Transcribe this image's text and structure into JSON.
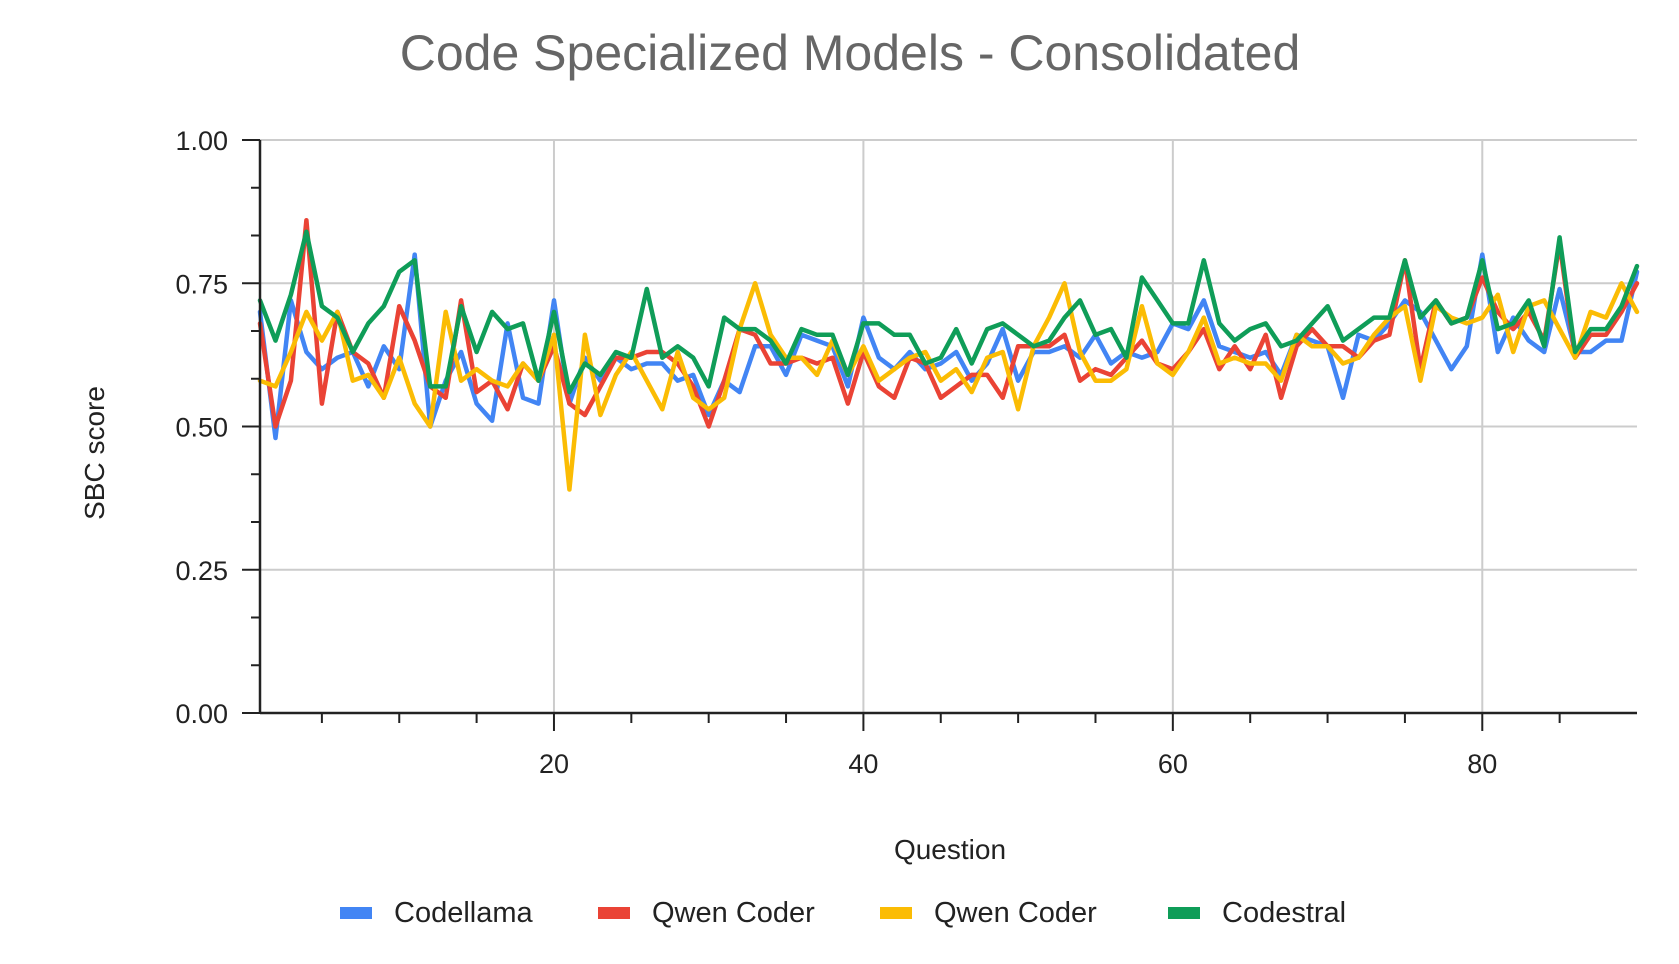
{
  "chart_data": {
    "type": "line",
    "title": "Code Specialized Models - Consolidated",
    "xlabel": "Question",
    "ylabel": "SBC score",
    "xlim": [
      1,
      90
    ],
    "ylim": [
      0,
      1
    ],
    "xticks": [
      20,
      40,
      60,
      80
    ],
    "xtick_labels": [
      "20",
      "40",
      "60",
      "80"
    ],
    "yticks": [
      0,
      0.25,
      0.5,
      0.75,
      1
    ],
    "ytick_labels": [
      "0.00",
      "0.25",
      "0.50",
      "0.75",
      "1.00"
    ],
    "grid": true,
    "legend_position": "bottom",
    "x": [
      1,
      2,
      3,
      4,
      5,
      6,
      7,
      8,
      9,
      10,
      11,
      12,
      13,
      14,
      15,
      16,
      17,
      18,
      19,
      20,
      21,
      22,
      23,
      24,
      25,
      26,
      27,
      28,
      29,
      30,
      31,
      32,
      33,
      34,
      35,
      36,
      37,
      38,
      39,
      40,
      41,
      42,
      43,
      44,
      45,
      46,
      47,
      48,
      49,
      50,
      51,
      52,
      53,
      54,
      55,
      56,
      57,
      58,
      59,
      60,
      61,
      62,
      63,
      64,
      65,
      66,
      67,
      68,
      69,
      70,
      71,
      72,
      73,
      74,
      75,
      76,
      77,
      78,
      79,
      80,
      81,
      82,
      83,
      84,
      85,
      86,
      87,
      88,
      89,
      90
    ],
    "series": [
      {
        "name": "Codellama",
        "color": "#4285f4",
        "values": [
          0.7,
          0.48,
          0.72,
          0.63,
          0.6,
          0.62,
          0.63,
          0.57,
          0.64,
          0.6,
          0.8,
          0.5,
          0.58,
          0.63,
          0.54,
          0.51,
          0.68,
          0.55,
          0.54,
          0.72,
          0.54,
          0.62,
          0.58,
          0.62,
          0.6,
          0.61,
          0.61,
          0.58,
          0.59,
          0.52,
          0.58,
          0.56,
          0.64,
          0.64,
          0.59,
          0.66,
          0.65,
          0.64,
          0.57,
          0.69,
          0.62,
          0.6,
          0.63,
          0.6,
          0.61,
          0.63,
          0.58,
          0.61,
          0.67,
          0.58,
          0.63,
          0.63,
          0.64,
          0.62,
          0.66,
          0.61,
          0.63,
          0.62,
          0.63,
          0.68,
          0.67,
          0.72,
          0.64,
          0.63,
          0.62,
          0.63,
          0.59,
          0.66,
          0.65,
          0.64,
          0.55,
          0.66,
          0.65,
          0.68,
          0.72,
          0.7,
          0.65,
          0.6,
          0.64,
          0.8,
          0.63,
          0.69,
          0.65,
          0.63,
          0.74,
          0.63,
          0.63,
          0.65,
          0.65,
          0.77
        ]
      },
      {
        "name": "Qwen Coder",
        "color": "#ea4335",
        "values": [
          0.68,
          0.5,
          0.58,
          0.86,
          0.54,
          0.7,
          0.63,
          0.61,
          0.55,
          0.71,
          0.65,
          0.57,
          0.55,
          0.72,
          0.56,
          0.58,
          0.53,
          0.61,
          0.58,
          0.64,
          0.54,
          0.52,
          0.57,
          0.62,
          0.62,
          0.63,
          0.63,
          0.61,
          0.57,
          0.5,
          0.58,
          0.67,
          0.66,
          0.61,
          0.61,
          0.62,
          0.61,
          0.62,
          0.54,
          0.63,
          0.57,
          0.55,
          0.62,
          0.61,
          0.55,
          0.57,
          0.59,
          0.59,
          0.55,
          0.64,
          0.64,
          0.64,
          0.66,
          0.58,
          0.6,
          0.59,
          0.62,
          0.65,
          0.61,
          0.6,
          0.63,
          0.67,
          0.6,
          0.64,
          0.6,
          0.66,
          0.55,
          0.64,
          0.67,
          0.64,
          0.64,
          0.62,
          0.65,
          0.66,
          0.79,
          0.6,
          0.72,
          0.68,
          0.69,
          0.76,
          0.7,
          0.67,
          0.7,
          0.65,
          0.82,
          0.62,
          0.66,
          0.66,
          0.7,
          0.75
        ]
      },
      {
        "name": "Qwen Coder",
        "color": "#fbbc04",
        "values": [
          0.58,
          0.57,
          0.63,
          0.7,
          0.65,
          0.7,
          0.58,
          0.59,
          0.55,
          0.62,
          0.54,
          0.5,
          0.7,
          0.58,
          0.6,
          0.58,
          0.57,
          0.61,
          0.58,
          0.66,
          0.39,
          0.66,
          0.52,
          0.59,
          0.63,
          0.58,
          0.53,
          0.63,
          0.55,
          0.53,
          0.55,
          0.67,
          0.75,
          0.66,
          0.62,
          0.62,
          0.59,
          0.65,
          0.59,
          0.64,
          0.58,
          0.6,
          0.62,
          0.63,
          0.58,
          0.6,
          0.56,
          0.62,
          0.63,
          0.53,
          0.64,
          0.69,
          0.75,
          0.63,
          0.58,
          0.58,
          0.6,
          0.71,
          0.61,
          0.59,
          0.63,
          0.69,
          0.61,
          0.62,
          0.61,
          0.61,
          0.58,
          0.66,
          0.64,
          0.64,
          0.61,
          0.62,
          0.66,
          0.69,
          0.71,
          0.58,
          0.71,
          0.69,
          0.68,
          0.69,
          0.73,
          0.63,
          0.71,
          0.72,
          0.67,
          0.62,
          0.7,
          0.69,
          0.75,
          0.7
        ]
      },
      {
        "name": "Codestral",
        "color": "#0f9d58",
        "values": [
          0.72,
          0.65,
          0.73,
          0.84,
          0.71,
          0.69,
          0.63,
          0.68,
          0.71,
          0.77,
          0.79,
          0.57,
          0.57,
          0.71,
          0.63,
          0.7,
          0.67,
          0.68,
          0.58,
          0.7,
          0.56,
          0.61,
          0.59,
          0.63,
          0.62,
          0.74,
          0.62,
          0.64,
          0.62,
          0.57,
          0.69,
          0.67,
          0.67,
          0.65,
          0.61,
          0.67,
          0.66,
          0.66,
          0.59,
          0.68,
          0.68,
          0.66,
          0.66,
          0.61,
          0.62,
          0.67,
          0.61,
          0.67,
          0.68,
          0.66,
          0.64,
          0.65,
          0.69,
          0.72,
          0.66,
          0.67,
          0.62,
          0.76,
          0.72,
          0.68,
          0.68,
          0.79,
          0.68,
          0.65,
          0.67,
          0.68,
          0.64,
          0.65,
          0.68,
          0.71,
          0.65,
          0.67,
          0.69,
          0.69,
          0.79,
          0.69,
          0.72,
          0.68,
          0.69,
          0.79,
          0.67,
          0.68,
          0.72,
          0.64,
          0.83,
          0.63,
          0.67,
          0.67,
          0.71,
          0.78
        ]
      }
    ]
  }
}
